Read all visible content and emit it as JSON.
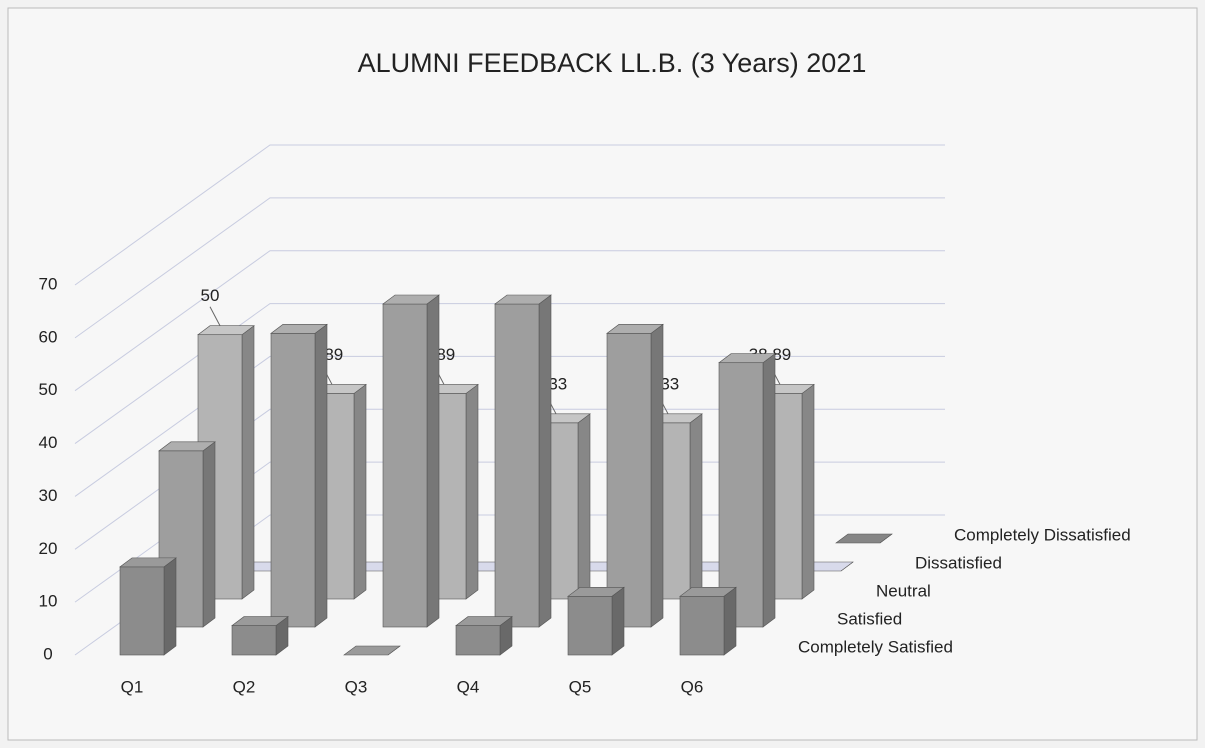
{
  "chart_data": {
    "type": "bar3d",
    "title": "ALUMNI FEEDBACK LL.B. (3 Years) 2021",
    "categories": [
      "Q1",
      "Q2",
      "Q3",
      "Q4",
      "Q5",
      "Q6"
    ],
    "series": [
      {
        "name": "Completely Satisfied",
        "color": "#8c8c8c",
        "values": [
          16.67,
          5.56,
          0,
          5.56,
          11.11,
          11.11
        ]
      },
      {
        "name": "Satisfied",
        "color": "#9e9e9e",
        "values": [
          33.33,
          55.56,
          61.11,
          61.11,
          55.56,
          50
        ]
      },
      {
        "name": "Neutral",
        "color": "#b4b4b4",
        "values": [
          50,
          38.89,
          38.89,
          33.33,
          33.33,
          38.89
        ],
        "show_labels": true
      },
      {
        "name": "Dissatisfied",
        "color": "#c4c6d6",
        "values": [
          0,
          0,
          0,
          0,
          0,
          0
        ]
      },
      {
        "name": "Completely Dissatisfied",
        "color": "#7a7a7a",
        "values": [
          0,
          0,
          0,
          0,
          0,
          0
        ]
      }
    ],
    "ylim": [
      0,
      70
    ],
    "yticks": [
      0,
      10,
      20,
      30,
      40,
      50,
      60,
      70
    ],
    "grid": true
  }
}
